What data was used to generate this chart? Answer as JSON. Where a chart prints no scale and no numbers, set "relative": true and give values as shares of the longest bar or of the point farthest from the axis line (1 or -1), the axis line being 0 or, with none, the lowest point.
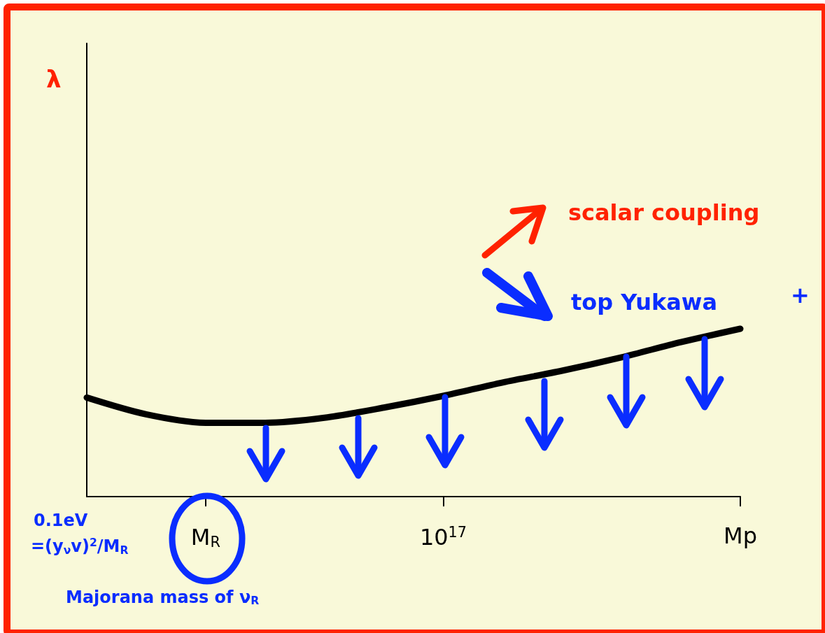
{
  "chart_data": {
    "type": "line",
    "relative": true,
    "categories": [
      null,
      null,
      "M$_{R}$",
      null,
      null,
      null,
      "10$^{17}$",
      null,
      null,
      null,
      null,
      "Mp"
    ],
    "series": [
      {
        "color": "#000000",
        "values": [
          0.59,
          0.49,
          0.44,
          0.44,
          0.47,
          0.53,
          0.6,
          0.68,
          0.75,
          0.83,
          0.92,
          1
        ]
      }
    ],
    "annotations": [
      "scalar coupling",
      "top Yukawa",
      "+",
      "0.1eV",
      "=(y$_{ν}$v)$^{2}$/M$_{R}$",
      "Majorana mass of ν$_{R}$",
      "λ"
    ]
  }
}
